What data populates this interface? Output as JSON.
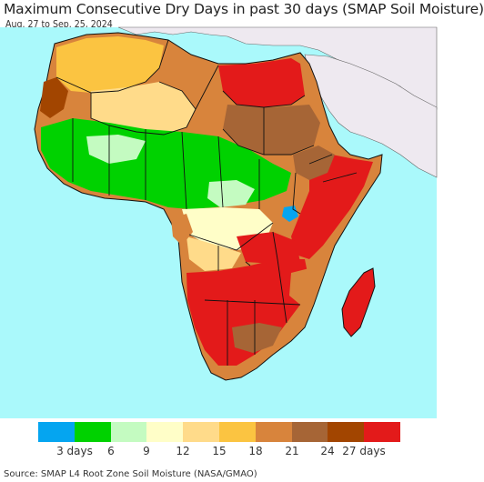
{
  "header": {
    "title": "Maximum Consecutive Dry Days in past 30 days (SMAP Soil Moisture)",
    "date_range": "Aug. 27 to Sep. 25, 2024"
  },
  "legend": {
    "colors": [
      "#05a5f0",
      "#00d200",
      "#c4fbc1",
      "#fffec8",
      "#ffdb8a",
      "#fbc441",
      "#d8843c",
      "#a66536",
      "#a24500",
      "#e31a1a"
    ],
    "labels": [
      "3 days",
      "6",
      "9",
      "12",
      "15",
      "18",
      "21",
      "24",
      "27 days"
    ]
  },
  "map": {
    "ocean_color": "#aaf9fb",
    "land_outside_color": "#eee9f0",
    "border_color": "#111111"
  },
  "footer": {
    "source": "Source: SMAP L4 Root Zone Soil Moisture (NASA/GMAO)"
  }
}
